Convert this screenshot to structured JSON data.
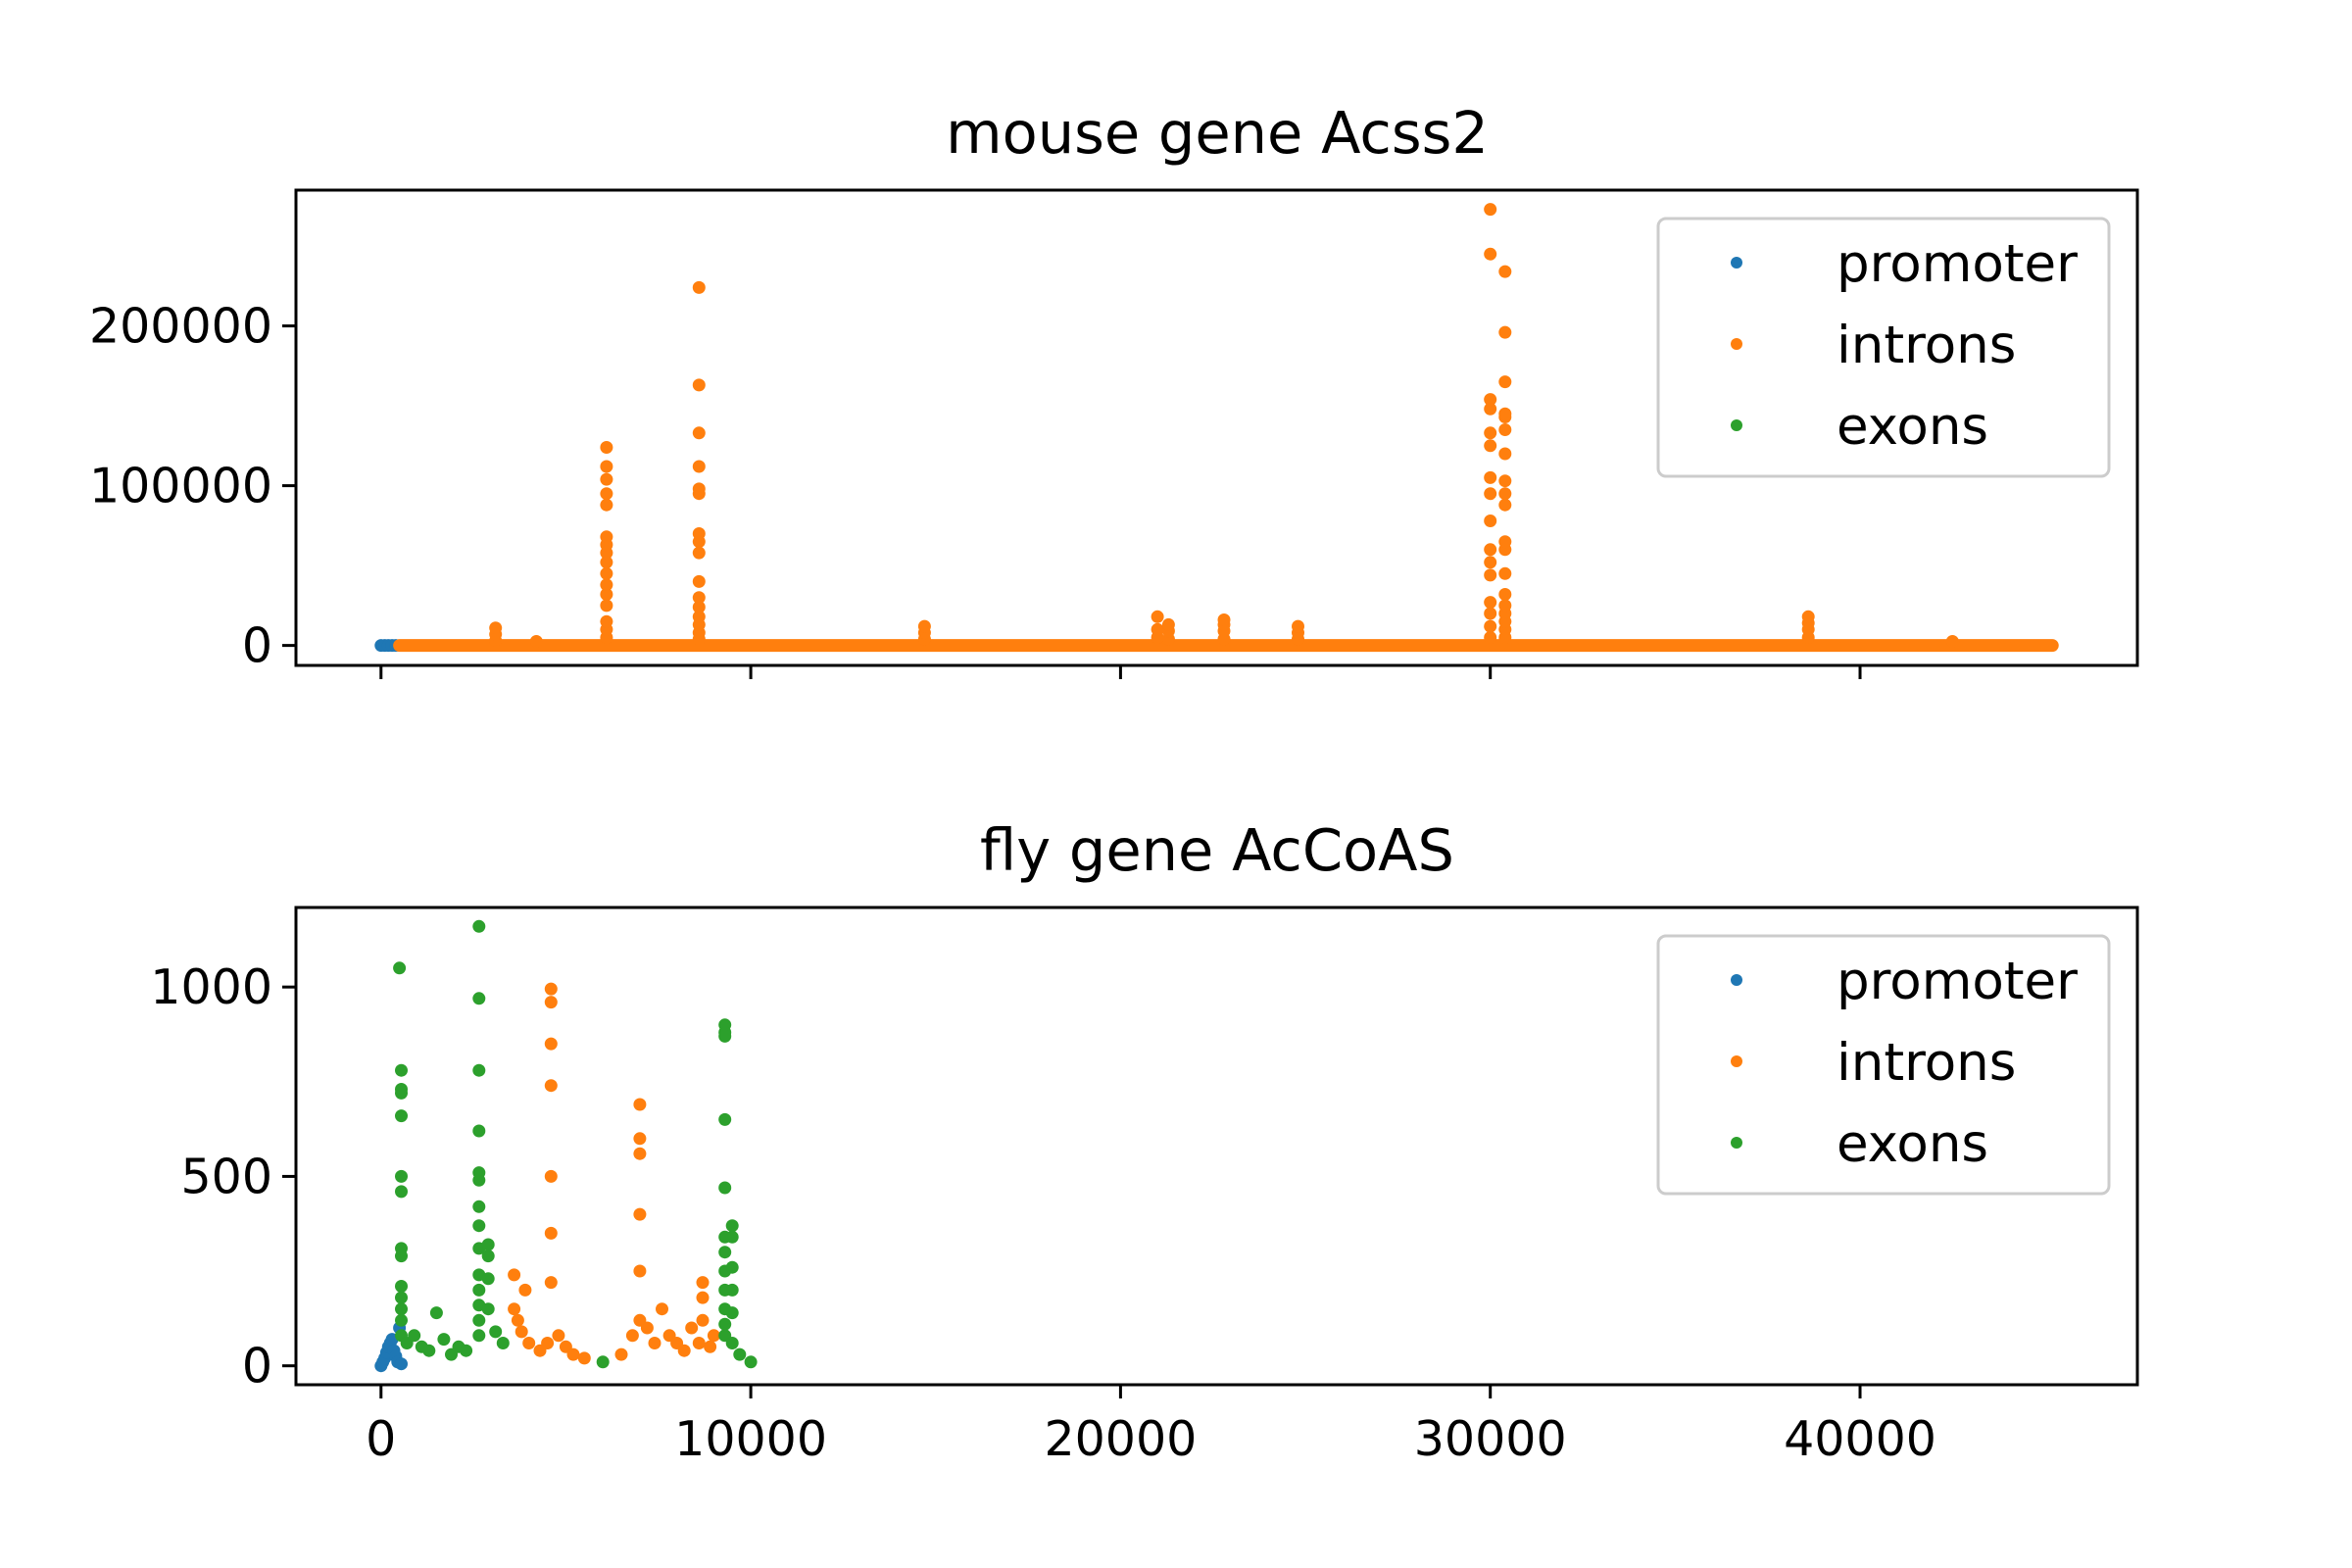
{
  "chart_data": [
    {
      "type": "scatter",
      "title": "mouse gene Acss2",
      "xlabel": "",
      "ylabel": "",
      "xlim": [
        -2300,
        47500
      ],
      "ylim": [
        -12500,
        285000
      ],
      "x_ticks": [
        0,
        10000,
        20000,
        30000,
        40000
      ],
      "x_tick_labels_shown": false,
      "y_ticks": [
        0,
        100000,
        200000
      ],
      "y_tick_labels": [
        "0",
        "100000",
        "200000"
      ],
      "legend": {
        "placement": "upper right",
        "entries": [
          "promoter",
          "introns",
          "exons"
        ]
      },
      "series": [
        {
          "name": "promoter",
          "color": "#1f77b4",
          "points": [
            [
              0,
              0
            ],
            [
              100,
              0
            ],
            [
              200,
              0
            ],
            [
              300,
              0
            ],
            [
              400,
              0
            ]
          ]
        },
        {
          "name": "introns",
          "color": "#ff7f0e",
          "baseline_range": [
            500,
            45200
          ],
          "points": [
            [
              3100,
              3000
            ],
            [
              3100,
              7000
            ],
            [
              3100,
              11000
            ],
            [
              4200,
              2500
            ],
            [
              6100,
              5000
            ],
            [
              6100,
              10000
            ],
            [
              6100,
              15000
            ],
            [
              6100,
              25000
            ],
            [
              6100,
              32000
            ],
            [
              6100,
              38000
            ],
            [
              6100,
              45000
            ],
            [
              6100,
              52000
            ],
            [
              6100,
              58000
            ],
            [
              6100,
              63000
            ],
            [
              6100,
              68000
            ],
            [
              6100,
              88000
            ],
            [
              6100,
              95000
            ],
            [
              6100,
              104000
            ],
            [
              6100,
              112000
            ],
            [
              6100,
              124000
            ],
            [
              8600,
              4000
            ],
            [
              8600,
              8000
            ],
            [
              8600,
              13000
            ],
            [
              8600,
              18000
            ],
            [
              8600,
              24000
            ],
            [
              8600,
              30000
            ],
            [
              8600,
              40000
            ],
            [
              8600,
              58000
            ],
            [
              8600,
              65000
            ],
            [
              8600,
              70000
            ],
            [
              8600,
              95000
            ],
            [
              8600,
              98000
            ],
            [
              8600,
              112000
            ],
            [
              8600,
              133000
            ],
            [
              8600,
              163000
            ],
            [
              8600,
              224000
            ],
            [
              14700,
              4000
            ],
            [
              14700,
              8000
            ],
            [
              14700,
              12000
            ],
            [
              21000,
              5000
            ],
            [
              21000,
              10000
            ],
            [
              21000,
              18000
            ],
            [
              21300,
              4000
            ],
            [
              21300,
              9000
            ],
            [
              21300,
              13000
            ],
            [
              22800,
              4000
            ],
            [
              22800,
              9000
            ],
            [
              22800,
              13000
            ],
            [
              22800,
              16000
            ],
            [
              24800,
              4000
            ],
            [
              24800,
              8000
            ],
            [
              24800,
              12000
            ],
            [
              30000,
              5000
            ],
            [
              30000,
              12000
            ],
            [
              30000,
              20000
            ],
            [
              30000,
              27000
            ],
            [
              30000,
              44000
            ],
            [
              30000,
              52000
            ],
            [
              30000,
              60000
            ],
            [
              30000,
              78000
            ],
            [
              30000,
              95000
            ],
            [
              30000,
              105000
            ],
            [
              30000,
              125000
            ],
            [
              30000,
              133000
            ],
            [
              30000,
              148000
            ],
            [
              30000,
              154000
            ],
            [
              30000,
              245000
            ],
            [
              30000,
              273000
            ],
            [
              30400,
              5000
            ],
            [
              30400,
              10000
            ],
            [
              30400,
              15000
            ],
            [
              30400,
              20000
            ],
            [
              30400,
              25000
            ],
            [
              30400,
              32000
            ],
            [
              30400,
              45000
            ],
            [
              30400,
              60000
            ],
            [
              30400,
              65000
            ],
            [
              30400,
              88000
            ],
            [
              30400,
              95000
            ],
            [
              30400,
              103000
            ],
            [
              30400,
              120000
            ],
            [
              30400,
              135000
            ],
            [
              30400,
              143000
            ],
            [
              30400,
              145000
            ],
            [
              30400,
              165000
            ],
            [
              30400,
              196000
            ],
            [
              30400,
              234000
            ],
            [
              38600,
              5000
            ],
            [
              38600,
              10000
            ],
            [
              38600,
              14000
            ],
            [
              38600,
              18000
            ],
            [
              42500,
              2500
            ]
          ]
        },
        {
          "name": "exons",
          "color": "#2ca02c",
          "points": []
        }
      ]
    },
    {
      "type": "scatter",
      "title": "fly gene AcCoAS",
      "xlabel": "",
      "ylabel": "",
      "xlim": [
        -2300,
        47500
      ],
      "ylim": [
        -50,
        1210
      ],
      "x_ticks": [
        0,
        10000,
        20000,
        30000,
        40000
      ],
      "x_tick_labels": [
        "0",
        "10000",
        "20000",
        "30000",
        "40000"
      ],
      "y_ticks": [
        0,
        500,
        1000
      ],
      "y_tick_labels": [
        "0",
        "500",
        "1000"
      ],
      "legend": {
        "placement": "upper right",
        "entries": [
          "promoter",
          "introns",
          "exons"
        ]
      },
      "series": [
        {
          "name": "promoter",
          "color": "#1f77b4",
          "points": [
            [
              0,
              0
            ],
            [
              50,
              10
            ],
            [
              100,
              20
            ],
            [
              150,
              35
            ],
            [
              200,
              50
            ],
            [
              250,
              60
            ],
            [
              300,
              70
            ],
            [
              350,
              40
            ],
            [
              400,
              25
            ],
            [
              450,
              10
            ],
            [
              500,
              100
            ],
            [
              550,
              5
            ]
          ]
        },
        {
          "name": "introns",
          "color": "#ff7f0e",
          "points": [
            [
              3600,
              240
            ],
            [
              3600,
              150
            ],
            [
              3700,
              120
            ],
            [
              3800,
              90
            ],
            [
              3900,
              200
            ],
            [
              4000,
              60
            ],
            [
              4300,
              40
            ],
            [
              4500,
              60
            ],
            [
              4600,
              220
            ],
            [
              4600,
              350
            ],
            [
              4600,
              500
            ],
            [
              4600,
              740
            ],
            [
              4600,
              850
            ],
            [
              4600,
              960
            ],
            [
              4600,
              995
            ],
            [
              4800,
              80
            ],
            [
              5000,
              50
            ],
            [
              5200,
              30
            ],
            [
              5500,
              20
            ],
            [
              6500,
              30
            ],
            [
              6800,
              80
            ],
            [
              7000,
              120
            ],
            [
              7000,
              250
            ],
            [
              7000,
              400
            ],
            [
              7000,
              560
            ],
            [
              7000,
              600
            ],
            [
              7000,
              690
            ],
            [
              7200,
              100
            ],
            [
              7400,
              60
            ],
            [
              7600,
              150
            ],
            [
              7800,
              80
            ],
            [
              8000,
              60
            ],
            [
              8200,
              40
            ],
            [
              8400,
              100
            ],
            [
              8600,
              60
            ],
            [
              8700,
              220
            ],
            [
              8700,
              180
            ],
            [
              8700,
              120
            ],
            [
              8900,
              50
            ],
            [
              9000,
              80
            ]
          ]
        },
        {
          "name": "exons",
          "color": "#2ca02c",
          "points": [
            [
              500,
              1050
            ],
            [
              550,
              780
            ],
            [
              550,
              730
            ],
            [
              550,
              720
            ],
            [
              550,
              660
            ],
            [
              550,
              500
            ],
            [
              550,
              460
            ],
            [
              550,
              310
            ],
            [
              550,
              290
            ],
            [
              550,
              210
            ],
            [
              550,
              180
            ],
            [
              550,
              150
            ],
            [
              550,
              120
            ],
            [
              550,
              80
            ],
            [
              700,
              60
            ],
            [
              900,
              80
            ],
            [
              1100,
              50
            ],
            [
              1300,
              40
            ],
            [
              1500,
              140
            ],
            [
              1700,
              70
            ],
            [
              1900,
              30
            ],
            [
              2100,
              50
            ],
            [
              2300,
              40
            ],
            [
              2650,
              1160
            ],
            [
              2650,
              970
            ],
            [
              2650,
              780
            ],
            [
              2650,
              620
            ],
            [
              2650,
              510
            ],
            [
              2650,
              490
            ],
            [
              2650,
              420
            ],
            [
              2650,
              370
            ],
            [
              2650,
              310
            ],
            [
              2650,
              240
            ],
            [
              2650,
              200
            ],
            [
              2650,
              160
            ],
            [
              2650,
              120
            ],
            [
              2650,
              80
            ],
            [
              2900,
              320
            ],
            [
              2900,
              290
            ],
            [
              2900,
              230
            ],
            [
              2900,
              150
            ],
            [
              3100,
              90
            ],
            [
              3300,
              60
            ],
            [
              6000,
              10
            ],
            [
              9300,
              900
            ],
            [
              9300,
              880
            ],
            [
              9300,
              870
            ],
            [
              9300,
              650
            ],
            [
              9300,
              470
            ],
            [
              9300,
              340
            ],
            [
              9300,
              300
            ],
            [
              9300,
              250
            ],
            [
              9300,
              200
            ],
            [
              9300,
              150
            ],
            [
              9300,
              110
            ],
            [
              9300,
              80
            ],
            [
              9500,
              370
            ],
            [
              9500,
              340
            ],
            [
              9500,
              260
            ],
            [
              9500,
              200
            ],
            [
              9500,
              140
            ],
            [
              9500,
              60
            ],
            [
              9700,
              30
            ],
            [
              10000,
              10
            ]
          ]
        }
      ]
    }
  ]
}
